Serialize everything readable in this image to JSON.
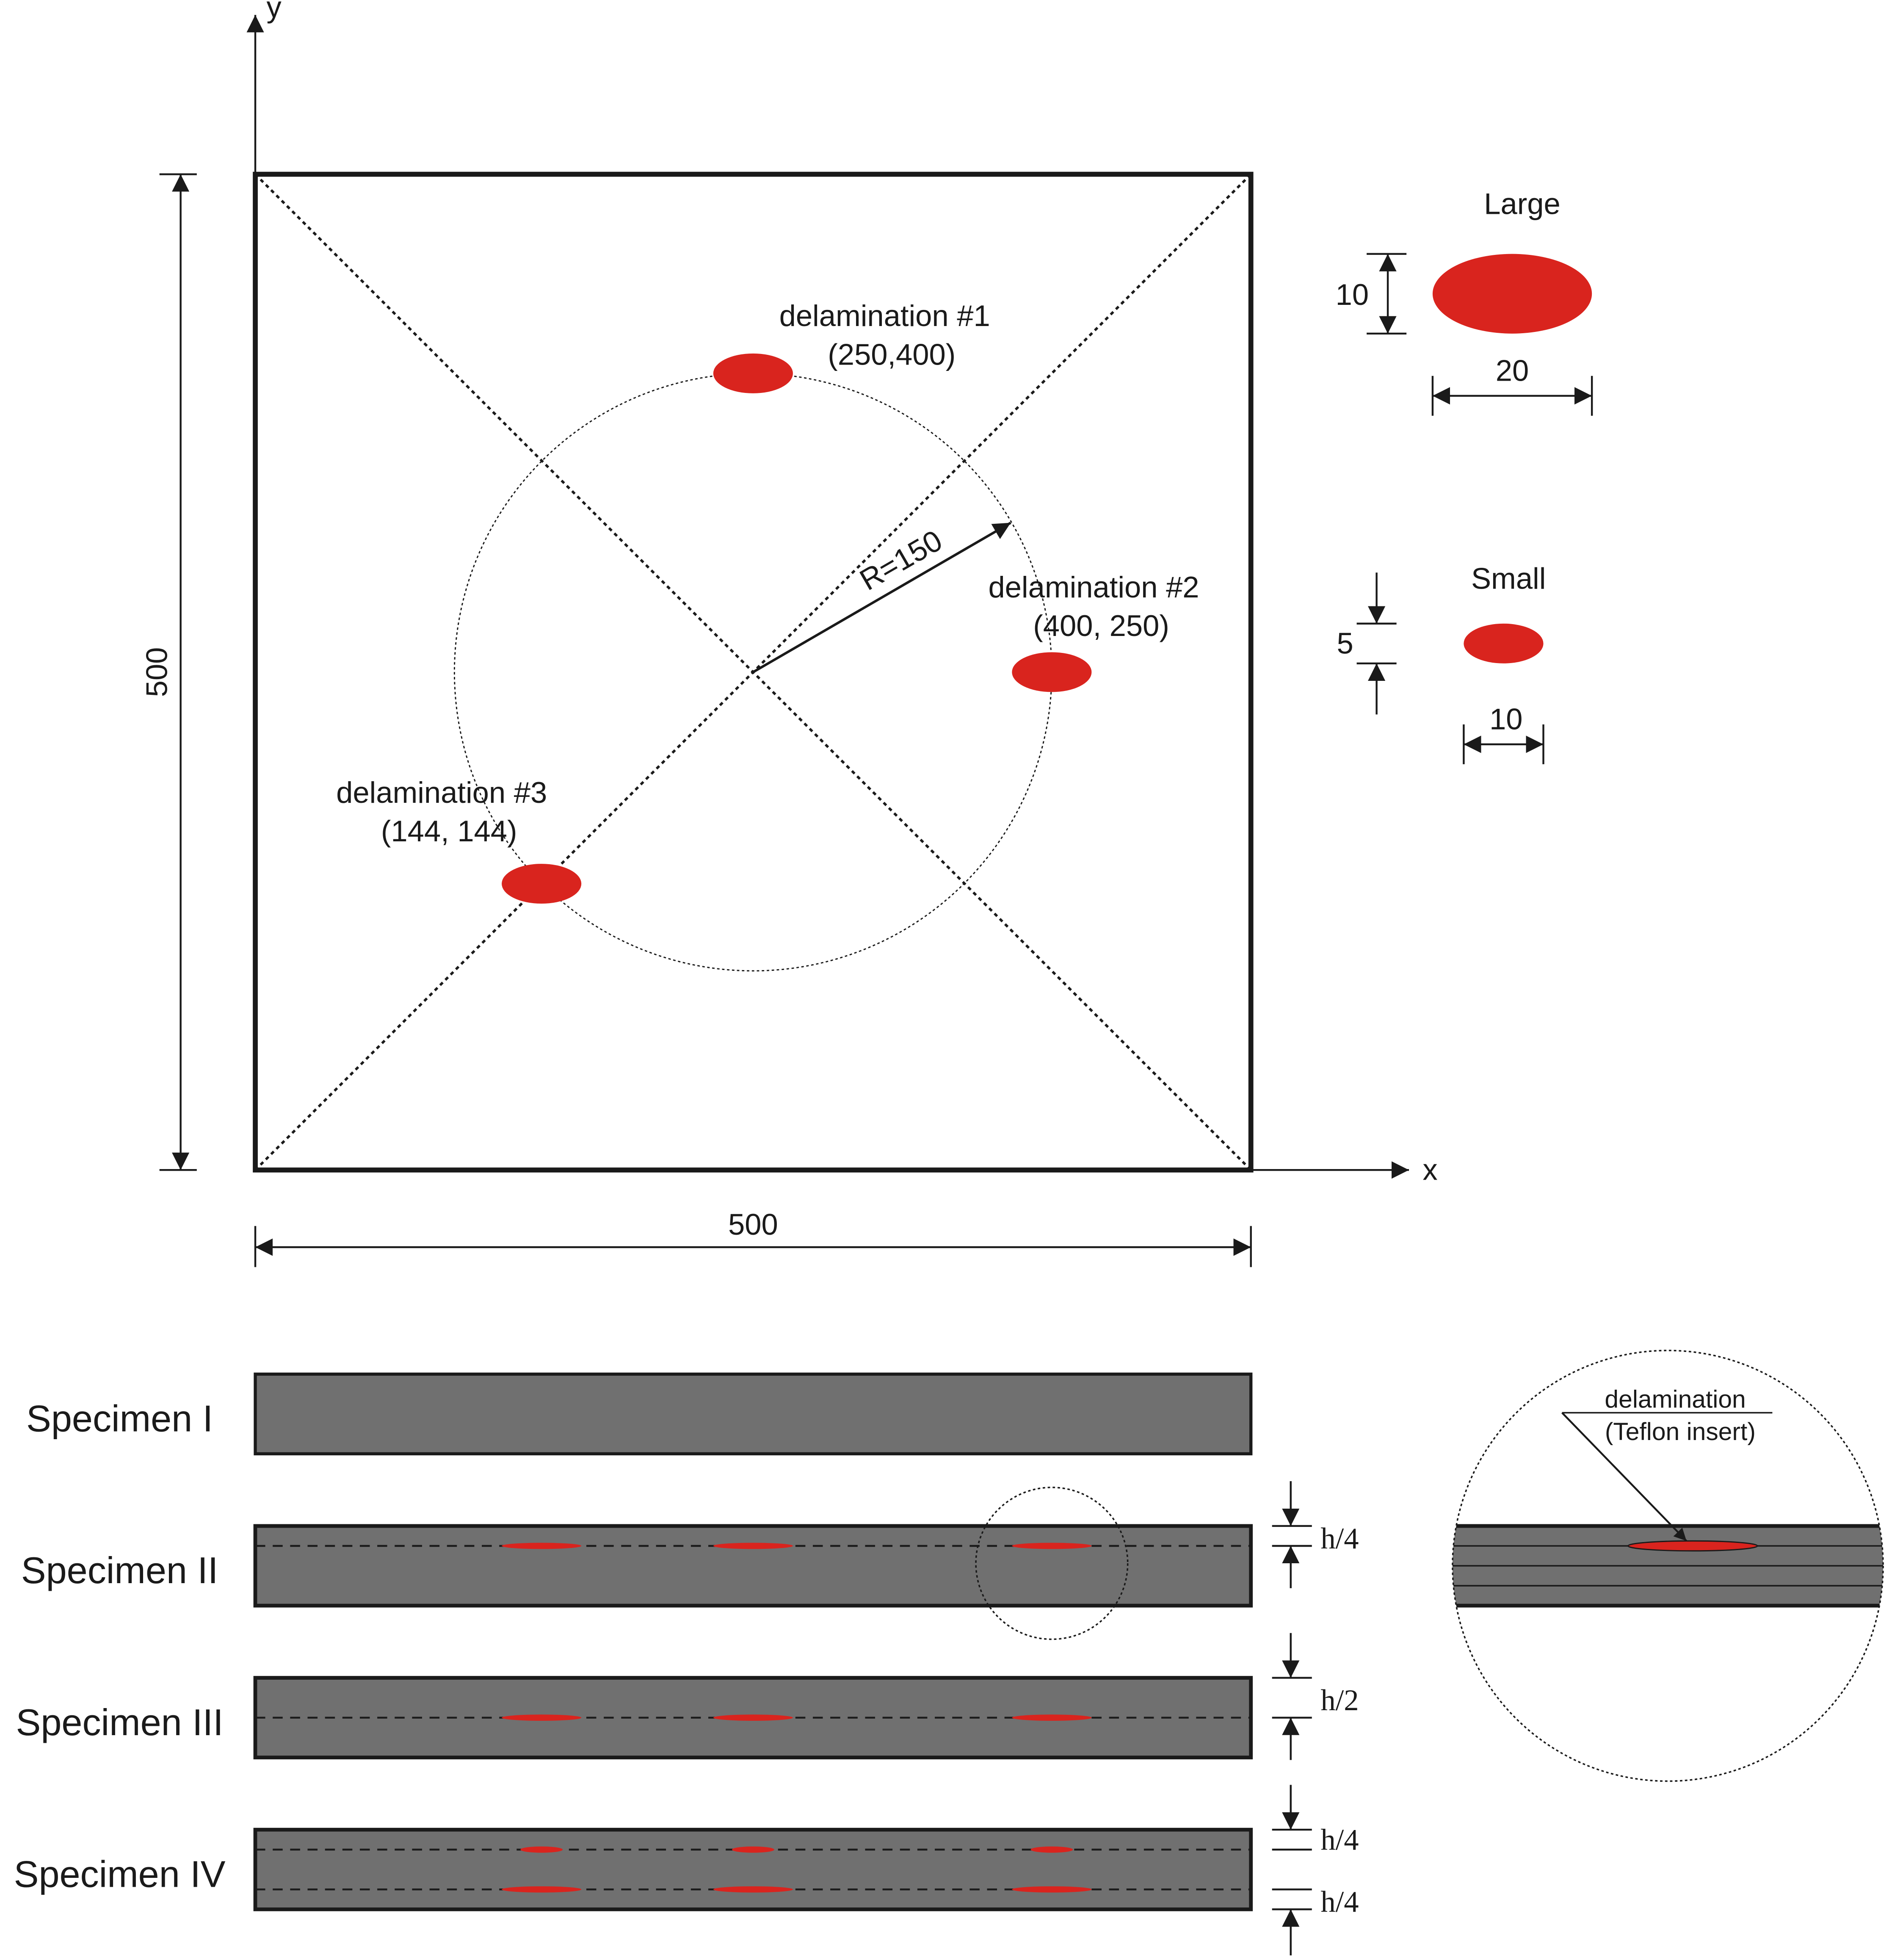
{
  "colors": {
    "delamination": "#d9241e",
    "specimen_fill": "#707070",
    "stroke": "#1a1a1a",
    "background": "#ffffff"
  },
  "axes": {
    "x_label": "x",
    "y_label": "y"
  },
  "plate": {
    "width_label": "500",
    "height_label": "500",
    "radius_label": "R=150"
  },
  "delaminations": [
    {
      "name": "delamination #1",
      "coords": "(250,400)"
    },
    {
      "name": "delamination #2",
      "coords": "(400, 250)"
    },
    {
      "name": "delamination #3",
      "coords": "(144, 144)"
    }
  ],
  "legend": {
    "large": {
      "title": "Large",
      "height": "10",
      "width": "20"
    },
    "small": {
      "title": "Small",
      "height": "5",
      "width": "10"
    }
  },
  "specimens": [
    {
      "label": "Specimen I"
    },
    {
      "label": "Specimen II",
      "dims": [
        "h/4"
      ]
    },
    {
      "label": "Specimen III",
      "dims": [
        "h/2"
      ]
    },
    {
      "label": "Specimen IV",
      "dims": [
        "h/4",
        "h/4"
      ]
    }
  ],
  "detail": {
    "line1": "delamination",
    "line2": "(Teflon insert)"
  }
}
